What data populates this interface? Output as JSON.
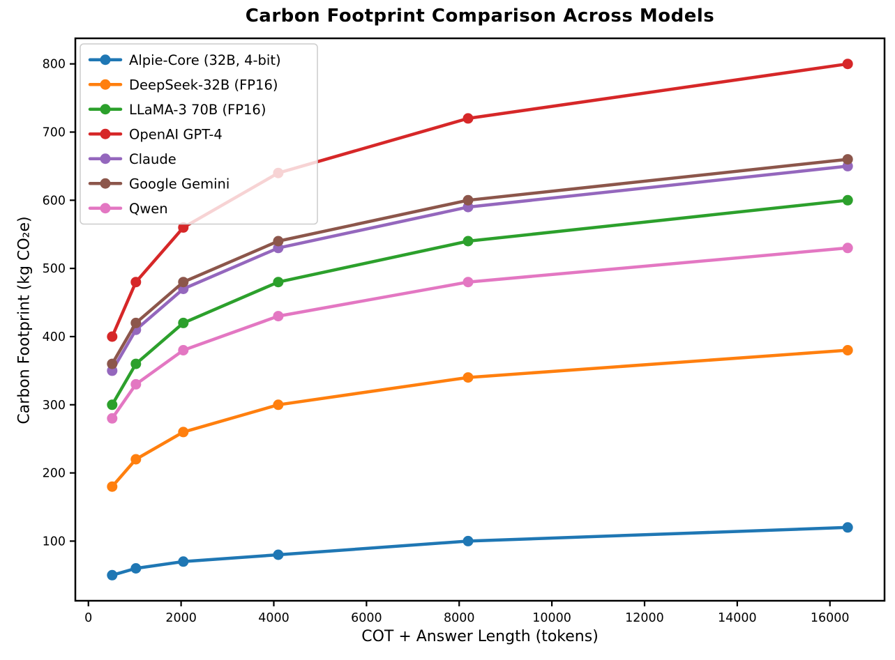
{
  "chart_data": {
    "type": "line",
    "title": "Carbon Footprint Comparison Across Models",
    "xlabel": "COT + Answer Length (tokens)",
    "ylabel": "Carbon Footprint (kg CO₂e)",
    "x": [
      512,
      1024,
      2048,
      4096,
      8192,
      16384
    ],
    "series": [
      {
        "name": "Alpie-Core (32B, 4-bit)",
        "color": "#1f77b4",
        "values": [
          50,
          60,
          70,
          80,
          100,
          120
        ]
      },
      {
        "name": "DeepSeek-32B (FP16)",
        "color": "#ff7f0e",
        "values": [
          180,
          220,
          260,
          300,
          340,
          380
        ]
      },
      {
        "name": "LLaMA-3 70B (FP16)",
        "color": "#2ca02c",
        "values": [
          300,
          360,
          420,
          480,
          540,
          600
        ]
      },
      {
        "name": "OpenAI GPT-4",
        "color": "#d62728",
        "values": [
          400,
          480,
          560,
          640,
          720,
          800
        ]
      },
      {
        "name": "Claude",
        "color": "#9467bd",
        "values": [
          350,
          410,
          470,
          530,
          590,
          650
        ]
      },
      {
        "name": "Google Gemini",
        "color": "#8c564b",
        "values": [
          360,
          420,
          480,
          540,
          600,
          660
        ]
      },
      {
        "name": "Qwen",
        "color": "#e377c2",
        "values": [
          280,
          330,
          380,
          430,
          480,
          530
        ]
      }
    ],
    "x_ticks": [
      0,
      2000,
      4000,
      6000,
      8000,
      10000,
      12000,
      14000,
      16000
    ],
    "y_ticks": [
      100,
      200,
      300,
      400,
      500,
      600,
      700,
      800
    ],
    "xlim": [
      -282,
      17178
    ],
    "ylim": [
      12.5,
      837.5
    ],
    "grid": false,
    "legend_position": "upper-left",
    "axis_color": "#000000",
    "legend_border_color": "#cccccc",
    "legend_bg_color": "#ffffff"
  }
}
